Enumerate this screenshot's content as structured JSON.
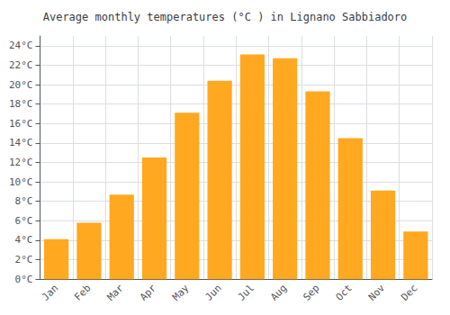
{
  "chart_data": {
    "type": "bar",
    "title": "Average monthly temperatures (°C ) in Lignano Sabbiadoro",
    "categories": [
      "Jan",
      "Feb",
      "Mar",
      "Apr",
      "May",
      "Jun",
      "Jul",
      "Aug",
      "Sep",
      "Oct",
      "Nov",
      "Dec"
    ],
    "values": [
      4.1,
      5.8,
      8.7,
      12.5,
      17.1,
      20.4,
      23.1,
      22.7,
      19.3,
      14.5,
      9.1,
      4.9
    ],
    "color": "#FFA820",
    "ylim": [
      0,
      25
    ],
    "yticks": [
      {
        "value": 0,
        "label": "0°C"
      },
      {
        "value": 2,
        "label": "2°C"
      },
      {
        "value": 4,
        "label": "4°C"
      },
      {
        "value": 6,
        "label": "6°C"
      },
      {
        "value": 8,
        "label": "8°C"
      },
      {
        "value": 10,
        "label": "10°C"
      },
      {
        "value": 12,
        "label": "12°C"
      },
      {
        "value": 14,
        "label": "14°C"
      },
      {
        "value": 16,
        "label": "16°C"
      },
      {
        "value": 18,
        "label": "18°C"
      },
      {
        "value": 20,
        "label": "20°C"
      },
      {
        "value": 22,
        "label": "22°C"
      },
      {
        "value": 24,
        "label": "24°C"
      }
    ],
    "grid": true
  }
}
